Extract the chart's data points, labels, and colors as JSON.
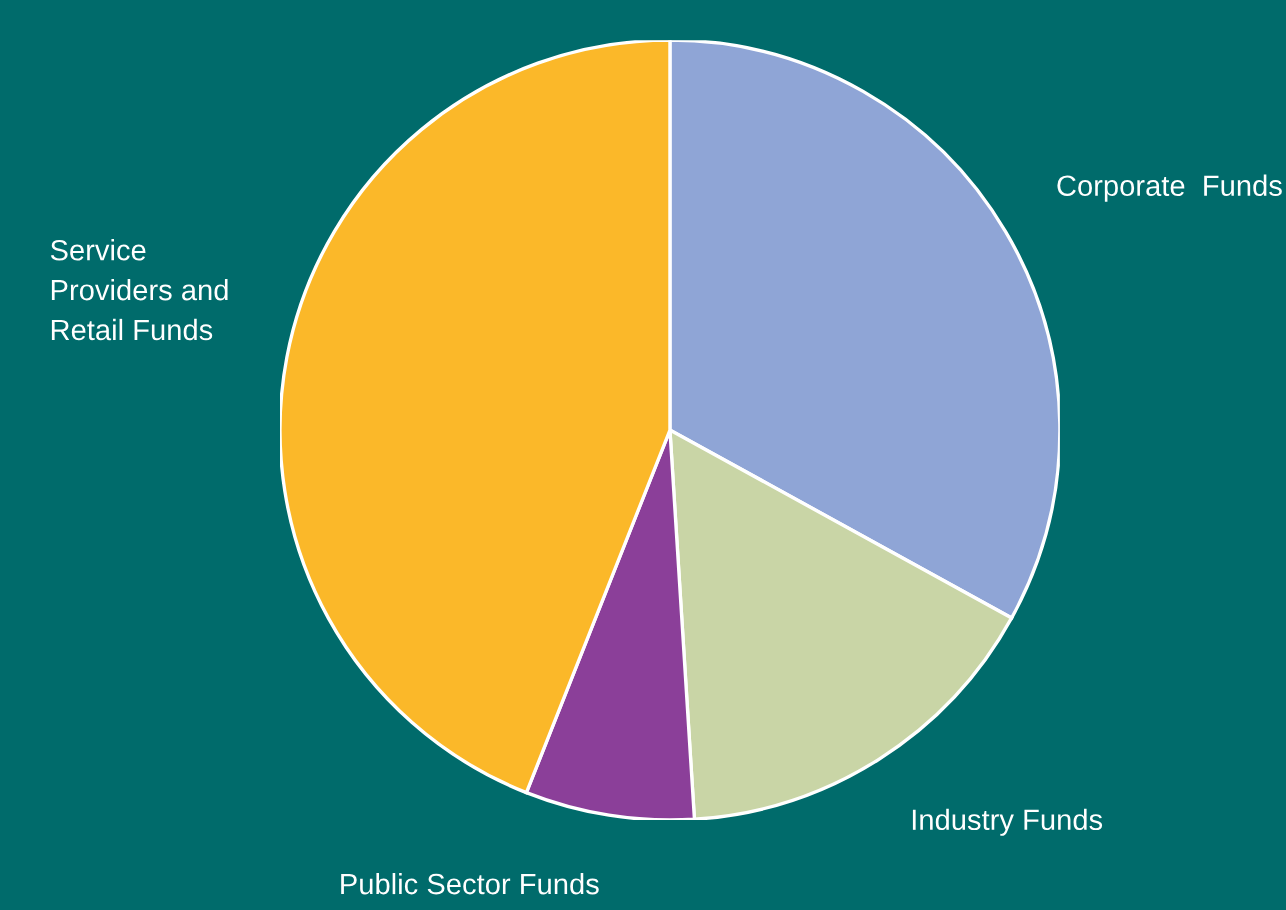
{
  "chart_data": {
    "type": "pie",
    "categories": [
      "Corporate  Funds",
      "Industry Funds",
      "Public Sector Funds",
      "Service\nProviders and\nRetail Funds"
    ],
    "values": [
      33,
      16,
      7,
      44
    ],
    "colors": [
      "#8fa5d6",
      "#c9d5a6",
      "#8b3f99",
      "#fbb829"
    ]
  }
}
